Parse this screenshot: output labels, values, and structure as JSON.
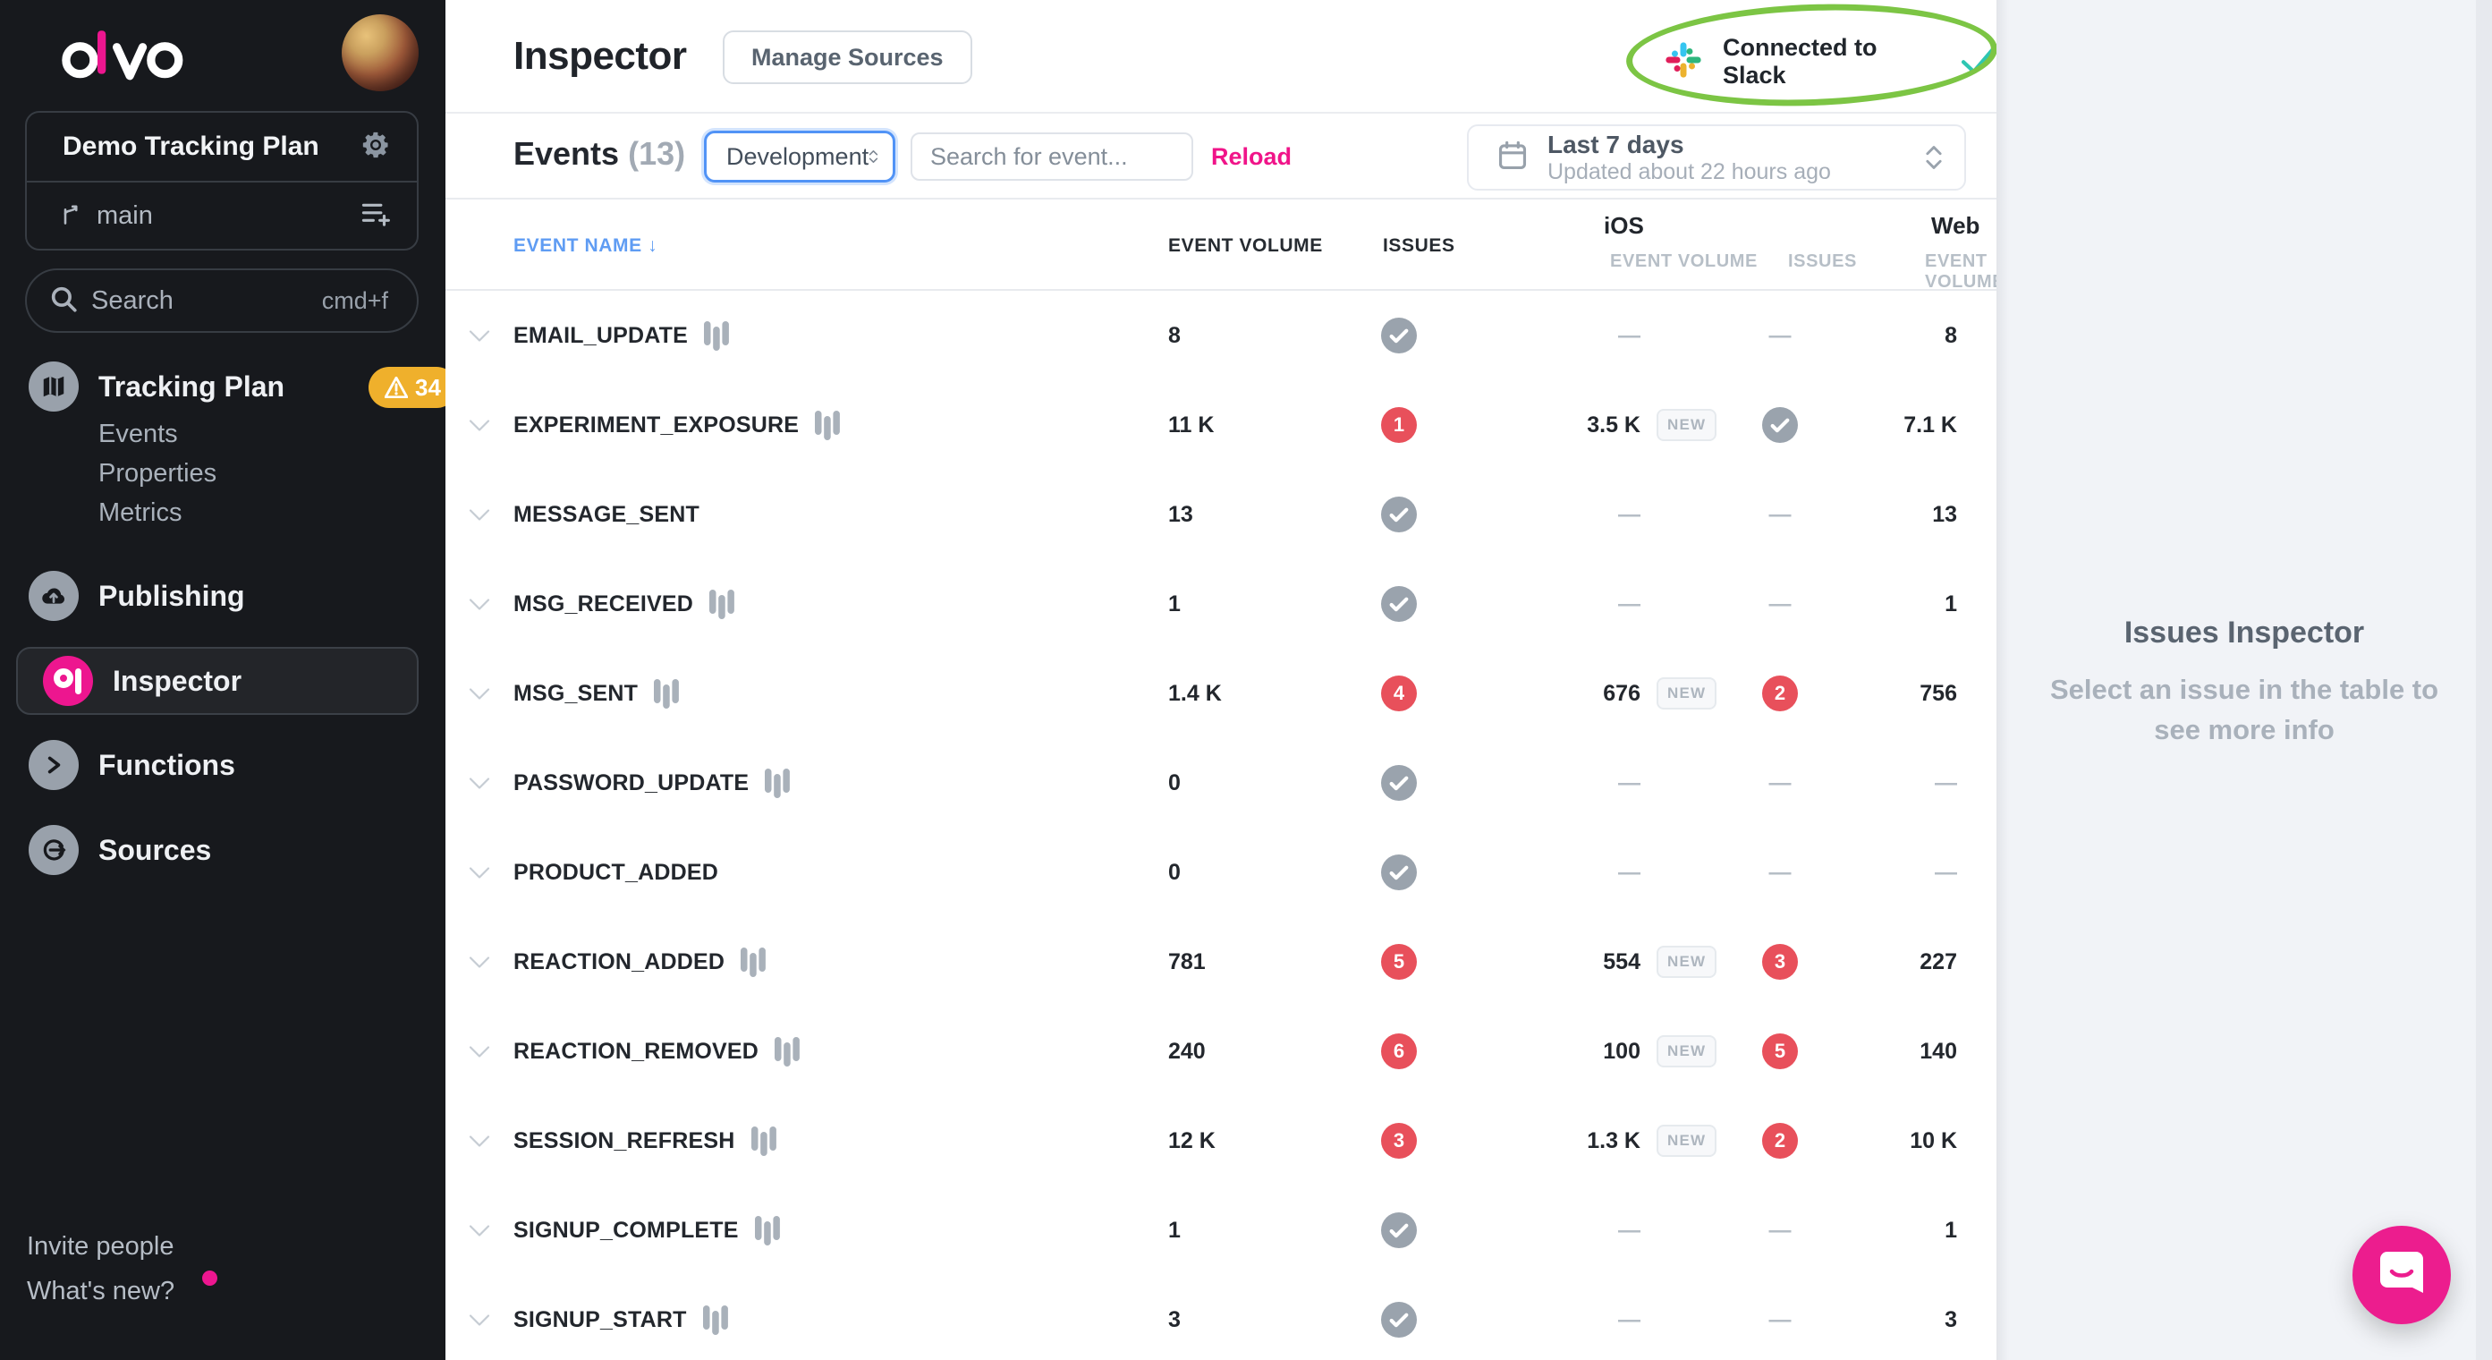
{
  "sidebar": {
    "logo": "avo",
    "workspace": {
      "name": "Demo Tracking Plan",
      "branch": "main"
    },
    "search": {
      "placeholder": "Search",
      "shortcut": "cmd+f"
    },
    "nav": {
      "tracking_plan": {
        "label": "Tracking Plan",
        "badge": "34"
      },
      "sub_items": [
        "Events",
        "Properties",
        "Metrics"
      ],
      "publishing": "Publishing",
      "inspector": "Inspector",
      "functions": "Functions",
      "sources": "Sources"
    },
    "footer": {
      "invite": "Invite people",
      "whats_new": "What's new?"
    }
  },
  "topbar": {
    "title": "Inspector",
    "manage_sources": "Manage Sources",
    "slack_status": "Connected to Slack"
  },
  "toolbar": {
    "events_label": "Events",
    "events_count": "(13)",
    "environment": "Development",
    "search_placeholder": "Search for event...",
    "reload": "Reload",
    "date_range": "Last 7 days",
    "date_updated": "Updated about 22 hours ago"
  },
  "table": {
    "headers": {
      "event_name": "EVENT NAME",
      "event_volume": "EVENT VOLUME",
      "issues": "ISSUES",
      "ios_group": "iOS",
      "web_group": "Web",
      "sub_event_volume": "EVENT VOLUME",
      "sub_issues": "ISSUES"
    },
    "new_badge": "NEW",
    "dash": "—",
    "rows": [
      {
        "name": "EMAIL_UPDATE",
        "chart_icon": true,
        "volume": "8",
        "issues": {
          "kind": "ok"
        },
        "ios_volume": null,
        "ios_new": false,
        "ios_issues": null,
        "web_volume": "8"
      },
      {
        "name": "EXPERIMENT_EXPOSURE",
        "chart_icon": true,
        "volume": "11 K",
        "issues": {
          "kind": "error",
          "count": "1"
        },
        "ios_volume": "3.5 K",
        "ios_new": true,
        "ios_issues": {
          "kind": "ok"
        },
        "web_volume": "7.1 K"
      },
      {
        "name": "MESSAGE_SENT",
        "chart_icon": false,
        "volume": "13",
        "issues": {
          "kind": "ok"
        },
        "ios_volume": null,
        "ios_new": false,
        "ios_issues": null,
        "web_volume": "13"
      },
      {
        "name": "MSG_RECEIVED",
        "chart_icon": true,
        "volume": "1",
        "issues": {
          "kind": "ok"
        },
        "ios_volume": null,
        "ios_new": false,
        "ios_issues": null,
        "web_volume": "1"
      },
      {
        "name": "MSG_SENT",
        "chart_icon": true,
        "volume": "1.4 K",
        "issues": {
          "kind": "error",
          "count": "4"
        },
        "ios_volume": "676",
        "ios_new": true,
        "ios_issues": {
          "kind": "error",
          "count": "2"
        },
        "web_volume": "756"
      },
      {
        "name": "PASSWORD_UPDATE",
        "chart_icon": true,
        "volume": "0",
        "issues": {
          "kind": "ok"
        },
        "ios_volume": null,
        "ios_new": false,
        "ios_issues": null,
        "web_volume": null
      },
      {
        "name": "PRODUCT_ADDED",
        "chart_icon": false,
        "volume": "0",
        "issues": {
          "kind": "ok"
        },
        "ios_volume": null,
        "ios_new": false,
        "ios_issues": null,
        "web_volume": null
      },
      {
        "name": "REACTION_ADDED",
        "chart_icon": true,
        "volume": "781",
        "issues": {
          "kind": "error",
          "count": "5"
        },
        "ios_volume": "554",
        "ios_new": true,
        "ios_issues": {
          "kind": "error",
          "count": "3"
        },
        "web_volume": "227"
      },
      {
        "name": "REACTION_REMOVED",
        "chart_icon": true,
        "volume": "240",
        "issues": {
          "kind": "error",
          "count": "6"
        },
        "ios_volume": "100",
        "ios_new": true,
        "ios_issues": {
          "kind": "error",
          "count": "5"
        },
        "web_volume": "140"
      },
      {
        "name": "SESSION_REFRESH",
        "chart_icon": true,
        "volume": "12 K",
        "issues": {
          "kind": "error",
          "count": "3"
        },
        "ios_volume": "1.3 K",
        "ios_new": true,
        "ios_issues": {
          "kind": "error",
          "count": "2"
        },
        "web_volume": "10 K"
      },
      {
        "name": "SIGNUP_COMPLETE",
        "chart_icon": true,
        "volume": "1",
        "issues": {
          "kind": "ok"
        },
        "ios_volume": null,
        "ios_new": false,
        "ios_issues": null,
        "web_volume": "1"
      },
      {
        "name": "SIGNUP_START",
        "chart_icon": true,
        "volume": "3",
        "issues": {
          "kind": "ok"
        },
        "ios_volume": null,
        "ios_new": false,
        "ios_issues": null,
        "web_volume": "3"
      }
    ]
  },
  "right_panel": {
    "title": "Issues Inspector",
    "hint_line1": "Select an issue in the table to",
    "hint_line2": "see more info"
  },
  "colors": {
    "accent_pink": "#ED168F",
    "error_red": "#E8505B",
    "ok_gray": "#9AA3AD",
    "warning_yellow": "#EFB02C",
    "header_blue": "#5F9CF3",
    "annotation_green": "#7CC544",
    "slack_blue": "#36C5F0",
    "slack_green": "#2EB67D",
    "slack_yellow": "#ECB22E",
    "slack_red": "#E01E5A"
  }
}
